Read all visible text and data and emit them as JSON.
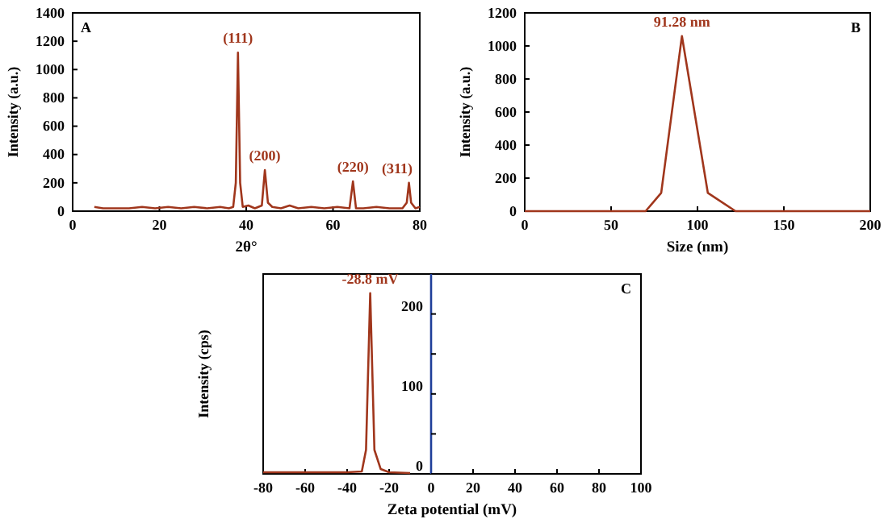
{
  "chart_data": [
    {
      "type": "line",
      "xlabel": "2θ°",
      "ylabel": "Intensity (a.u.)",
      "xlim": [
        0,
        80
      ],
      "xticks": [
        0,
        20,
        40,
        60,
        80
      ],
      "ylim": [
        0,
        1400
      ],
      "yticks": [
        0,
        200,
        400,
        600,
        800,
        1000,
        1200,
        1400
      ],
      "series": [
        {
          "color": "#a0361c",
          "x": [
            5,
            7,
            10,
            13,
            16,
            19,
            22,
            25,
            28,
            31,
            34,
            36,
            37,
            37.6,
            38.1,
            38.6,
            39.2,
            40.5,
            42,
            43.6,
            44.3,
            45,
            46,
            48,
            50,
            52,
            55,
            58,
            61,
            63.8,
            64.6,
            65.3,
            67,
            70,
            73,
            76,
            77,
            77.5,
            78,
            79,
            80
          ],
          "values": [
            30,
            20,
            20,
            20,
            30,
            20,
            30,
            20,
            30,
            20,
            30,
            20,
            30,
            200,
            1120,
            200,
            30,
            40,
            20,
            40,
            290,
            60,
            30,
            20,
            40,
            20,
            30,
            20,
            30,
            20,
            210,
            20,
            20,
            30,
            20,
            20,
            60,
            200,
            60,
            20,
            30
          ]
        }
      ],
      "annotations": [
        "A",
        {
          "text": "(111)",
          "x": 38.1,
          "y": 1120
        },
        {
          "text": "(200)",
          "x": 44.3,
          "y": 290
        },
        {
          "text": "(220)",
          "x": 64.6,
          "y": 210
        },
        {
          "text": "(311)",
          "x": 77.5,
          "y": 200
        }
      ]
    },
    {
      "type": "line",
      "xlabel": "Size (nm)",
      "ylabel": "Intensity (a.u.)",
      "xlim": [
        0,
        200
      ],
      "xticks": [
        0,
        50,
        100,
        150,
        200
      ],
      "ylim": [
        0,
        1200
      ],
      "yticks": [
        0,
        200,
        400,
        600,
        800,
        1000,
        1200
      ],
      "series": [
        {
          "color": "#a0361c",
          "x": [
            0,
            70,
            79,
            91,
            106,
            122,
            200
          ],
          "values": [
            0,
            0,
            110,
            1060,
            110,
            0,
            0
          ]
        }
      ],
      "annotations": [
        "B",
        {
          "text": "91.28 nm",
          "x": 91,
          "y": 1060
        }
      ]
    },
    {
      "type": "line",
      "xlabel": "Zeta potential (mV)",
      "ylabel": "Intensity (cps)",
      "xlim": [
        -80,
        100
      ],
      "xticks": [
        -80,
        -60,
        -40,
        -20,
        0,
        20,
        40,
        60,
        80,
        100
      ],
      "ylim": [
        0,
        250
      ],
      "yticks": [
        0,
        {
          "value": 50,
          "label": null
        },
        100,
        {
          "value": 150,
          "label": null
        },
        200
      ],
      "series": [
        {
          "color": "#a0361c",
          "x": [
            -80,
            -40,
            -33,
            -31,
            -29,
            -27,
            -24,
            -20,
            -10
          ],
          "values": [
            2,
            2,
            3,
            30,
            226,
            30,
            6,
            2,
            1
          ]
        }
      ],
      "annotations": [
        "C",
        {
          "text": "-28.8 mV",
          "x": -29,
          "y": 226
        }
      ]
    }
  ]
}
